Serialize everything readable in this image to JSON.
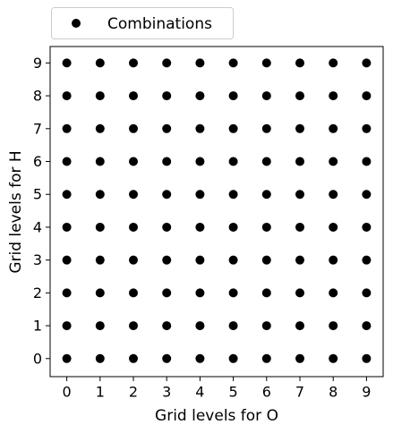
{
  "chart_data": {
    "type": "scatter",
    "xlabel": "Grid levels for O",
    "ylabel": "Grid levels for H",
    "series": [
      {
        "name": "Combinations",
        "color": "#000000",
        "x": [
          0,
          0,
          0,
          0,
          0,
          0,
          0,
          0,
          0,
          0,
          1,
          1,
          1,
          1,
          1,
          1,
          1,
          1,
          1,
          1,
          2,
          2,
          2,
          2,
          2,
          2,
          2,
          2,
          2,
          2,
          3,
          3,
          3,
          3,
          3,
          3,
          3,
          3,
          3,
          3,
          4,
          4,
          4,
          4,
          4,
          4,
          4,
          4,
          4,
          4,
          5,
          5,
          5,
          5,
          5,
          5,
          5,
          5,
          5,
          5,
          6,
          6,
          6,
          6,
          6,
          6,
          6,
          6,
          6,
          6,
          7,
          7,
          7,
          7,
          7,
          7,
          7,
          7,
          7,
          7,
          8,
          8,
          8,
          8,
          8,
          8,
          8,
          8,
          8,
          8,
          9,
          9,
          9,
          9,
          9,
          9,
          9,
          9,
          9,
          9
        ],
        "values": [
          0,
          1,
          2,
          3,
          4,
          5,
          6,
          7,
          8,
          9,
          0,
          1,
          2,
          3,
          4,
          5,
          6,
          7,
          8,
          9,
          0,
          1,
          2,
          3,
          4,
          5,
          6,
          7,
          8,
          9,
          0,
          1,
          2,
          3,
          4,
          5,
          6,
          7,
          8,
          9,
          0,
          1,
          2,
          3,
          4,
          5,
          6,
          7,
          8,
          9,
          0,
          1,
          2,
          3,
          4,
          5,
          6,
          7,
          8,
          9,
          0,
          1,
          2,
          3,
          4,
          5,
          6,
          7,
          8,
          9,
          0,
          1,
          2,
          3,
          4,
          5,
          6,
          7,
          8,
          9,
          0,
          1,
          2,
          3,
          4,
          5,
          6,
          7,
          8,
          9,
          0,
          1,
          2,
          3,
          4,
          5,
          6,
          7,
          8,
          9
        ]
      }
    ],
    "xlim": [
      -0.5,
      9.5
    ],
    "ylim": [
      -0.55,
      9.5
    ],
    "xticks": [
      0,
      1,
      2,
      3,
      4,
      5,
      6,
      7,
      8,
      9
    ],
    "yticks": [
      0,
      1,
      2,
      3,
      4,
      5,
      6,
      7,
      8,
      9
    ],
    "legend": "upper left outside"
  }
}
